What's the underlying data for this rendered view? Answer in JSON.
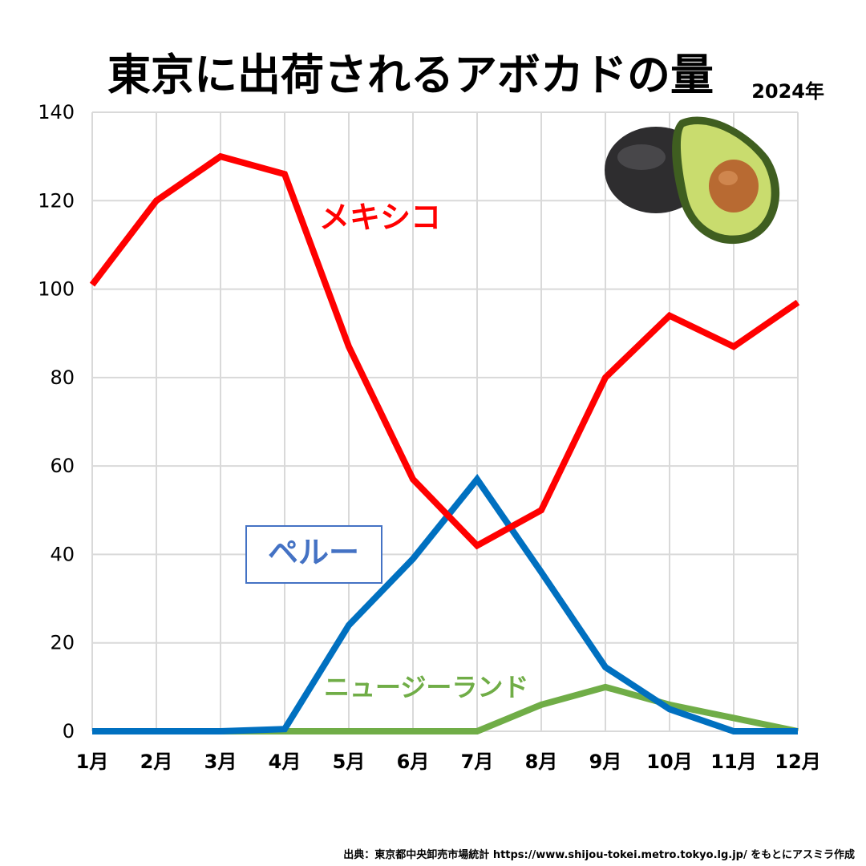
{
  "chart_data": {
    "type": "line",
    "title": "東京に出荷されるアボカドの量",
    "subtitle": "2024年",
    "categories": [
      "1月",
      "2月",
      "3月",
      "4月",
      "5月",
      "6月",
      "7月",
      "8月",
      "9月",
      "10月",
      "11月",
      "12月"
    ],
    "ylim": [
      0,
      140
    ],
    "yticks": [
      "0",
      "20",
      "40",
      "60",
      "80",
      "100",
      "120",
      "140"
    ],
    "grid": true,
    "series": [
      {
        "name": "メキシコ",
        "color": "#ff0000",
        "values": [
          101,
          120,
          130,
          126,
          87,
          57,
          42,
          50,
          80,
          94,
          87,
          97
        ]
      },
      {
        "name": "ペルー",
        "color": "#0070c0",
        "values": [
          0,
          0,
          0,
          0.5,
          24,
          39,
          57,
          36,
          14.5,
          5,
          0,
          0
        ]
      },
      {
        "name": "ニュージーランド",
        "color": "#70ad47",
        "values": [
          0,
          0,
          0,
          0,
          0,
          0,
          0,
          6,
          10,
          6,
          3,
          0
        ]
      }
    ],
    "labels": {
      "mexico": "メキシコ",
      "peru": "ペルー",
      "nz": "ニュージーランド"
    },
    "source": "出典：東京都中央卸売市場統計 https://www.shijou-tokei.metro.tokyo.lg.jp/ をもとにアスミラ作成"
  }
}
